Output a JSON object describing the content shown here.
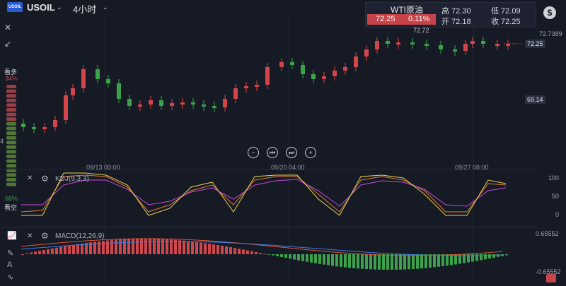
{
  "header": {
    "logo_text": "USOIL",
    "symbol": "USOIL",
    "timeframe": "4小时"
  },
  "quote": {
    "name": "WTI原油",
    "price": "72.25",
    "change_pct": "0.11%",
    "high": "高 72.30",
    "low": "低 72.09",
    "open": "开 72.18",
    "close": "收 72.25"
  },
  "price_axis": {
    "top_label": "72.7389",
    "current_tag": "72.25",
    "mid_tag": "69.14",
    "peak_label": "72.72",
    "left_stub": "4"
  },
  "sentiment": {
    "bull_label": "看多",
    "bull_pct": "34%",
    "bear_pct": "66%",
    "bear_label": "看空"
  },
  "dates": [
    "09/13 00:00",
    "09/20 04:00",
    "09/27 08:00"
  ],
  "kdj": {
    "label": "KDJ(9,3,3)",
    "ticks": [
      "100",
      "50",
      "0"
    ]
  },
  "macd": {
    "label": "MACD(12,26,9)",
    "ticks": [
      "0.65552",
      "-0.65552"
    ]
  },
  "icons": [
    "close-icon",
    "gear-icon",
    "dollar-icon",
    "collapse-icon",
    "zoom-out-icon",
    "prev-icon",
    "next-icon",
    "zoom-in-icon"
  ],
  "colors": {
    "up": "#3aa34a",
    "down": "#d2454b",
    "k": "#e8d24b",
    "d": "#e07b3a",
    "j": "#c64bd6",
    "dif": "#e0563a",
    "dea": "#3a7be0"
  }
}
